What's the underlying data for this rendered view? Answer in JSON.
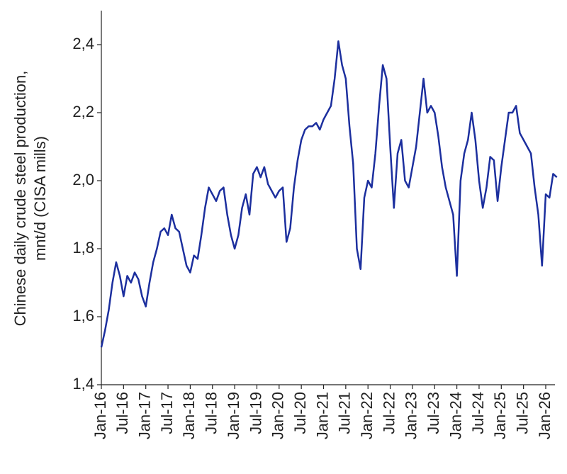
{
  "chart_data": {
    "type": "line",
    "y_label": [
      "Chinese daily crude steel production,",
      "mnt/d (CISA mills)"
    ],
    "categories": [
      "Jan-16",
      null,
      null,
      null,
      null,
      null,
      "Jul-16",
      null,
      null,
      null,
      null,
      null,
      "Jan-17",
      null,
      null,
      null,
      null,
      null,
      "Jul-17",
      null,
      null,
      null,
      null,
      null,
      "Jan-18",
      null,
      null,
      null,
      null,
      null,
      "Jul-18",
      null,
      null,
      null,
      null,
      null,
      "Jan-19",
      null,
      null,
      null,
      null,
      null,
      "Jul-19",
      null,
      null,
      null,
      null,
      null,
      "Jan-20",
      null,
      null,
      null,
      null,
      null,
      "Jul-20",
      null,
      null,
      null,
      null,
      null,
      "Jan-21",
      null,
      null,
      null,
      null,
      null,
      "Jul-21",
      null,
      null,
      null,
      null,
      null,
      "Jan-22",
      null,
      null,
      null,
      null,
      null,
      "Jul-22",
      null,
      null,
      null,
      null,
      null,
      "Jan-23",
      null,
      null,
      null,
      null,
      null,
      "Jul-23",
      null,
      null,
      null,
      null,
      null,
      "Jan-24",
      null,
      null,
      null,
      null,
      null,
      "Jul-24",
      null,
      null,
      null,
      null,
      null,
      "Jan-25",
      null,
      null,
      null,
      null,
      null,
      "Jul-25",
      null,
      null,
      null,
      null,
      null,
      "Jan-26",
      null,
      null,
      null
    ],
    "series": [
      {
        "name": "Chinese daily crude steel production",
        "color": "#1c2f9e",
        "values": [
          1.51,
          1.56,
          1.62,
          1.7,
          1.76,
          1.72,
          1.66,
          1.72,
          1.7,
          1.73,
          1.71,
          1.66,
          1.63,
          1.7,
          1.76,
          1.8,
          1.85,
          1.86,
          1.84,
          1.9,
          1.86,
          1.85,
          1.8,
          1.75,
          1.73,
          1.78,
          1.77,
          1.84,
          1.92,
          1.98,
          1.96,
          1.94,
          1.97,
          1.98,
          1.9,
          1.84,
          1.8,
          1.84,
          1.92,
          1.96,
          1.9,
          2.02,
          2.04,
          2.01,
          2.04,
          1.99,
          1.97,
          1.95,
          1.97,
          1.98,
          1.82,
          1.86,
          1.98,
          2.06,
          2.12,
          2.15,
          2.16,
          2.16,
          2.17,
          2.15,
          2.18,
          2.2,
          2.22,
          2.3,
          2.41,
          2.34,
          2.3,
          2.16,
          2.05,
          1.8,
          1.74,
          1.95,
          2.0,
          1.98,
          2.08,
          2.22,
          2.34,
          2.3,
          2.1,
          1.92,
          2.08,
          2.12,
          2.0,
          1.98,
          2.04,
          2.1,
          2.2,
          2.3,
          2.2,
          2.22,
          2.2,
          2.13,
          2.04,
          1.98,
          1.94,
          1.9,
          1.72,
          2.0,
          2.08,
          2.12,
          2.2,
          2.12,
          2.0,
          1.92,
          1.98,
          2.07,
          2.06,
          1.94,
          2.04,
          2.12,
          2.2,
          2.2,
          2.22,
          2.14,
          2.12,
          2.1,
          2.08,
          1.98,
          1.9,
          1.75,
          1.96,
          1.95,
          2.02,
          2.01
        ]
      }
    ],
    "ylim": [
      1.4,
      2.5
    ],
    "yticks": [
      {
        "value": 1.4,
        "label": "1,4"
      },
      {
        "value": 1.6,
        "label": "1,6"
      },
      {
        "value": 1.8,
        "label": "1,8"
      },
      {
        "value": 2.0,
        "label": "2,0"
      },
      {
        "value": 2.2,
        "label": "2,2"
      },
      {
        "value": 2.4,
        "label": "2,4"
      }
    ],
    "grid": false
  }
}
